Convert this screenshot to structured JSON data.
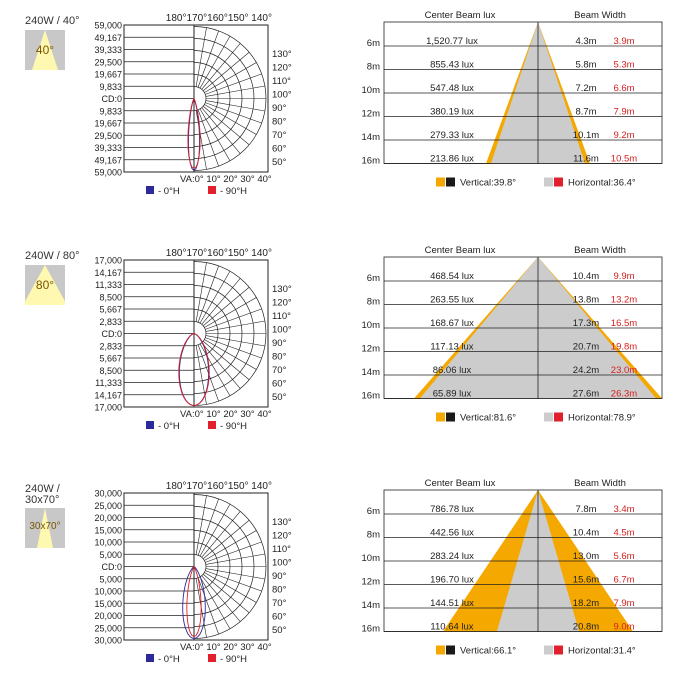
{
  "chart_data": [
    {
      "type": "polar-and-beam",
      "title": "240W / 40°",
      "thumb_label": "40°",
      "polar": {
        "cd_ticks": [
          "59,000",
          "49,167",
          "39,333",
          "29,500",
          "19,667",
          "9,833",
          "CD:0",
          "9,833",
          "19,667",
          "29,500",
          "39,333",
          "49,167",
          "59,000"
        ],
        "right_angles": [
          "130°",
          "120°",
          "110°",
          "100°",
          "90°",
          "80°",
          "70°",
          "60°",
          "50°"
        ],
        "top_label": "180°170°160°150° 140°",
        "bottom_label": "VA:0° 10° 20° 30° 40°",
        "legend": [
          "- 0°H",
          "- 90°H"
        ]
      },
      "beam": {
        "header_lux": "Center Beam lux",
        "header_width": "Beam Width",
        "distances": [
          "6m",
          "8m",
          "10m",
          "12m",
          "14m",
          "16m"
        ],
        "lux": [
          "1,520.77 lux",
          "855.43 lux",
          "547.48 lux",
          "380.19 lux",
          "279.33 lux",
          "213.86 lux"
        ],
        "width_v": [
          "4.3m",
          "5.8m",
          "7.2m",
          "8.7m",
          "10.1m",
          "11.6m"
        ],
        "width_h": [
          "3.9m",
          "5.3m",
          "6.6m",
          "7.9m",
          "9.2m",
          "10.5m"
        ],
        "legend_v": "Vertical:39.8°",
        "legend_h": "Horizontal:36.4°",
        "vertical_angle": 39.8,
        "horizontal_angle": 36.4
      }
    },
    {
      "type": "polar-and-beam",
      "title": "240W / 80°",
      "thumb_label": "80°",
      "polar": {
        "cd_ticks": [
          "17,000",
          "14,167",
          "11,333",
          "8,500",
          "5,667",
          "2,833",
          "CD:0",
          "2,833",
          "5,667",
          "8,500",
          "11,333",
          "14,167",
          "17,000"
        ],
        "right_angles": [
          "130°",
          "120°",
          "110°",
          "100°",
          "90°",
          "80°",
          "70°",
          "60°",
          "50°"
        ],
        "top_label": "180°170°160°150° 140°",
        "bottom_label": "VA:0° 10° 20° 30° 40°",
        "legend": [
          "- 0°H",
          "- 90°H"
        ]
      },
      "beam": {
        "header_lux": "Center Beam lux",
        "header_width": "Beam Width",
        "distances": [
          "6m",
          "8m",
          "10m",
          "12m",
          "14m",
          "16m"
        ],
        "lux": [
          "468.54 lux",
          "263.55 lux",
          "168.67 lux",
          "117.13 lux",
          "86.06 lux",
          "65.89 lux"
        ],
        "width_v": [
          "10.4m",
          "13.8m",
          "17.3m",
          "20.7m",
          "24.2m",
          "27.6m"
        ],
        "width_h": [
          "9.9m",
          "13.2m",
          "16.5m",
          "19.8m",
          "23.0m",
          "26.3m"
        ],
        "legend_v": "Vertical:81.6°",
        "legend_h": "Horizontal:78.9°",
        "vertical_angle": 81.6,
        "horizontal_angle": 78.9
      }
    },
    {
      "type": "polar-and-beam",
      "title": "240W /\n30x70°",
      "thumb_label": "30x70°",
      "polar": {
        "cd_ticks": [
          "30,000",
          "25,000",
          "20,000",
          "15,000",
          "10,000",
          "5,000",
          "CD:0",
          "5,000",
          "10,000",
          "15,000",
          "20,000",
          "25,000",
          "30,000"
        ],
        "right_angles": [
          "130°",
          "120°",
          "110°",
          "100°",
          "90°",
          "80°",
          "70°",
          "60°",
          "50°"
        ],
        "top_label": "180°170°160°150° 140°",
        "bottom_label": "VA:0° 10° 20° 30° 40°",
        "legend": [
          "- 0°H",
          "- 90°H"
        ]
      },
      "beam": {
        "header_lux": "Center Beam lux",
        "header_width": "Beam Width",
        "distances": [
          "6m",
          "8m",
          "10m",
          "12m",
          "14m",
          "16m"
        ],
        "lux": [
          "786.78 lux",
          "442.56 lux",
          "283.24 lux",
          "196.70 lux",
          "144.51 lux",
          "110.64 lux"
        ],
        "width_v": [
          "7.8m",
          "10.4m",
          "13.0m",
          "15.6m",
          "18.2m",
          "20.8m"
        ],
        "width_h": [
          "3.4m",
          "4.5m",
          "5.6m",
          "6.7m",
          "7.9m",
          "9.0m"
        ],
        "legend_v": "Vertical:66.1°",
        "legend_h": "Horizontal:31.4°",
        "vertical_angle": 66.1,
        "horizontal_angle": 31.4
      }
    }
  ],
  "colors": {
    "orange": "#f5a800",
    "gray_fill": "#cccccc",
    "black": "#1a1a1a",
    "blue": "#2a2a9a",
    "red": "#e0202a",
    "red_text": "#d42020",
    "thumb_bg": "#c8c8c8",
    "thumb_beam": "#fff8b0"
  }
}
